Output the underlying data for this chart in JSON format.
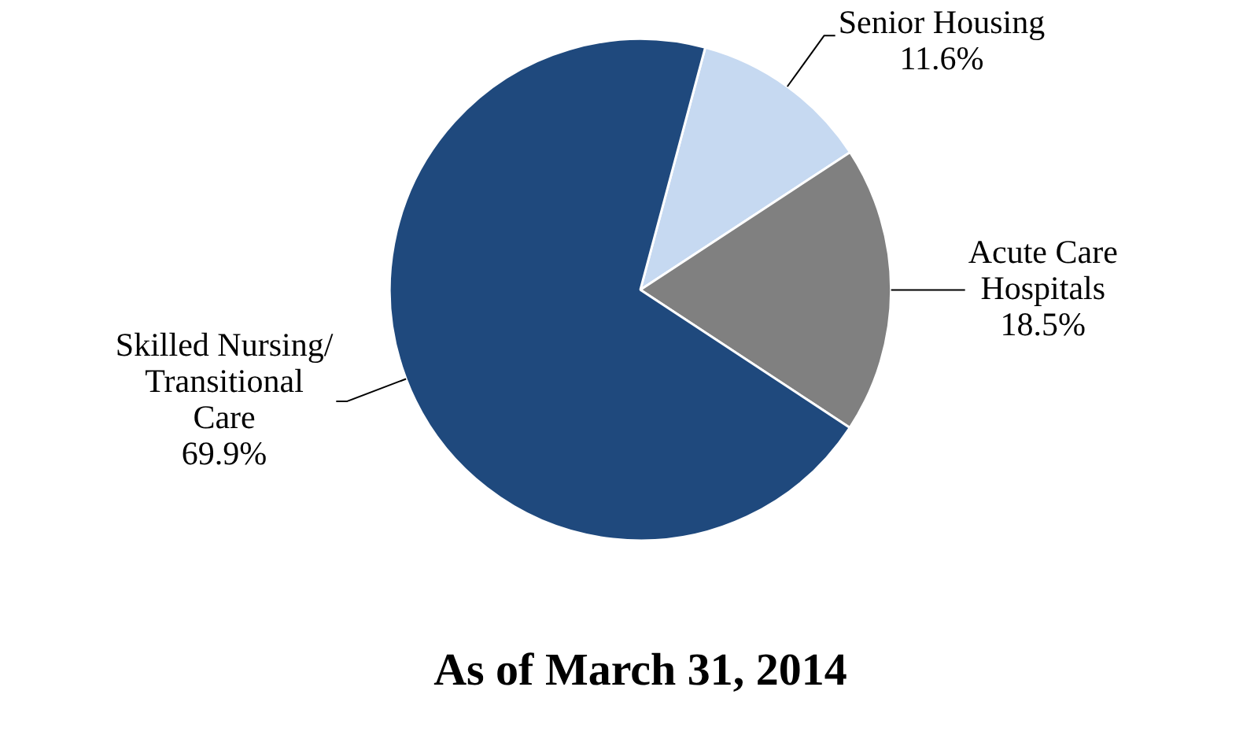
{
  "chart_data": {
    "type": "pie",
    "title": "As of March 31, 2014",
    "categories": [
      "Senior Housing",
      "Acute Care Hospitals",
      "Skilled Nursing/ Transitional Care"
    ],
    "values": [
      11.6,
      18.5,
      69.9
    ],
    "colors": [
      "#c6d9f1",
      "#808080",
      "#1f497d"
    ],
    "value_labels": [
      "11.6%",
      "18.5%",
      "69.9%"
    ],
    "legend": false
  }
}
